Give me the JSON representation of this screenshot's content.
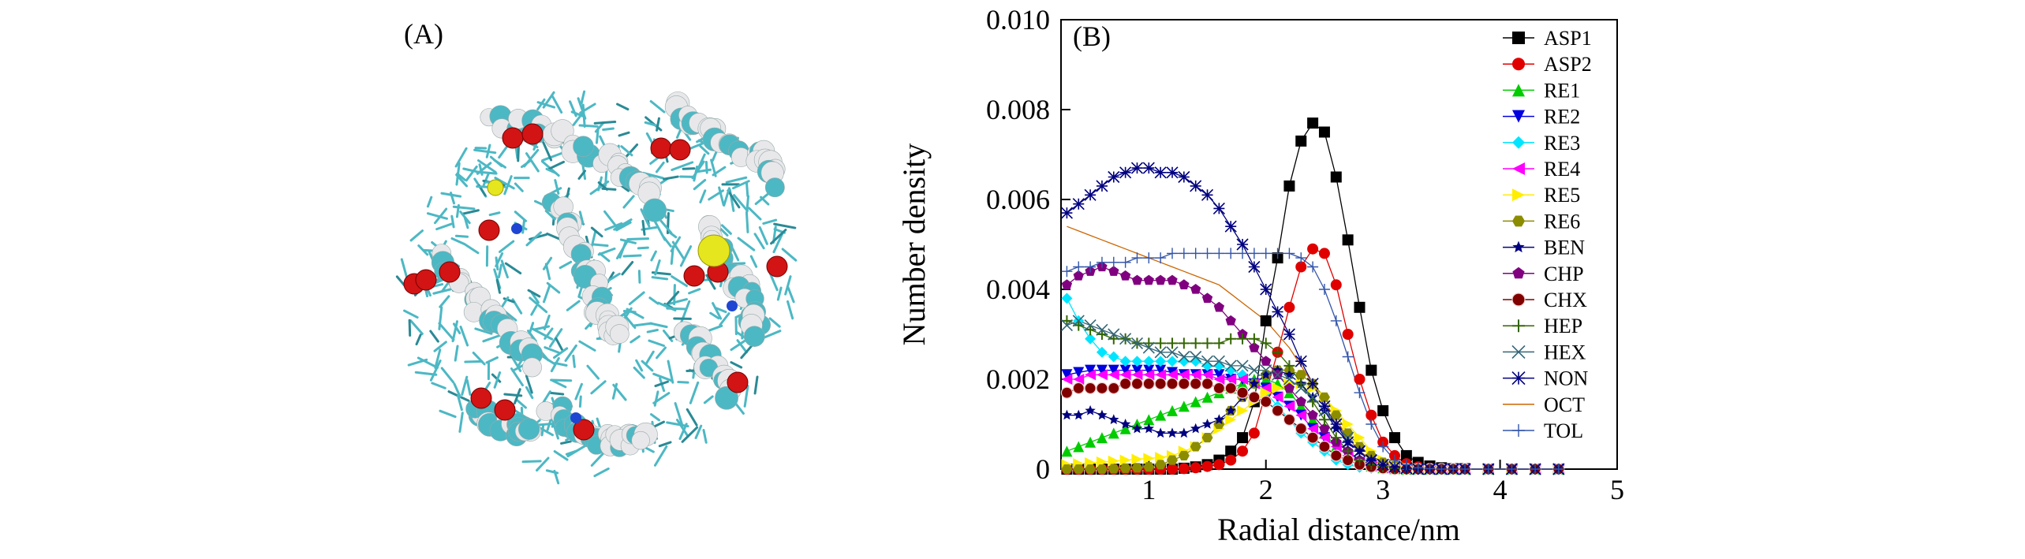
{
  "figure": {
    "panel_a_label": "(A)",
    "panel_b_label": "(B)"
  },
  "molecule_image": {
    "colors": {
      "carbon": "#4cb8c4",
      "hydrogen": "#e8e8ea",
      "oxygen": "#d21414",
      "sulfur": "#e6e61e",
      "nitrogen": "#1e46d2"
    }
  },
  "chart_data": {
    "type": "line",
    "xlabel": "Radial distance/nm",
    "ylabel": "Number density",
    "xlim": [
      0.25,
      5
    ],
    "ylim": [
      0,
      0.01
    ],
    "xticks": [
      "1",
      "2",
      "3",
      "4",
      "5"
    ],
    "yticks": [
      "0",
      "0.002",
      "0.004",
      "0.006",
      "0.008",
      "0.010"
    ],
    "grid": false,
    "legend_position": "top-right",
    "x": [
      0.3,
      0.4,
      0.5,
      0.6,
      0.7,
      0.8,
      0.9,
      1.0,
      1.1,
      1.2,
      1.3,
      1.4,
      1.5,
      1.6,
      1.7,
      1.8,
      1.9,
      2.0,
      2.1,
      2.2,
      2.3,
      2.4,
      2.5,
      2.6,
      2.7,
      2.8,
      2.9,
      3.0,
      3.1,
      3.2,
      3.3,
      3.4,
      3.5,
      3.6,
      3.7,
      3.8,
      3.9,
      4.0,
      4.1,
      4.2,
      4.3,
      4.4,
      4.5
    ],
    "series": [
      {
        "name": "ASP1",
        "marker": "square",
        "color": "#000000",
        "values": [
          0,
          0,
          0,
          0,
          0,
          0,
          0,
          0,
          0,
          0,
          2e-05,
          5e-05,
          0.0001,
          0.0002,
          0.0004,
          0.0007,
          0.0015,
          0.0033,
          0.0047,
          0.0063,
          0.0073,
          0.0077,
          0.0075,
          0.0065,
          0.0051,
          0.0036,
          0.0022,
          0.0013,
          0.0007,
          0.0003,
          0.00015,
          7e-05,
          3e-05,
          1e-05,
          1e-05,
          0,
          0,
          0,
          0,
          0,
          0,
          0,
          0
        ]
      },
      {
        "name": "ASP2",
        "marker": "circle",
        "color": "#e00000",
        "values": [
          0,
          0,
          0,
          0,
          0,
          0,
          0,
          0,
          0,
          0,
          1e-05,
          3e-05,
          6e-05,
          0.0001,
          0.0002,
          0.0004,
          0.0008,
          0.0017,
          0.0026,
          0.0036,
          0.0045,
          0.0049,
          0.0048,
          0.0041,
          0.003,
          0.002,
          0.0012,
          0.0006,
          0.0003,
          0.00012,
          5e-05,
          2e-05,
          1e-05,
          0,
          0,
          0,
          0,
          0,
          0,
          0,
          0,
          0,
          0
        ]
      },
      {
        "name": "RE1",
        "marker": "triangle-up",
        "color": "#00cc00",
        "values": [
          0.0004,
          0.0005,
          0.0006,
          0.0007,
          0.0008,
          0.0009,
          0.001,
          0.0011,
          0.0012,
          0.0013,
          0.0014,
          0.0015,
          0.0016,
          0.0017,
          0.0018,
          0.0019,
          0.002,
          0.002,
          0.0019,
          0.0017,
          0.0014,
          0.0011,
          0.0008,
          0.0005,
          0.0003,
          0.00015,
          7e-05,
          3e-05,
          1e-05,
          0,
          0,
          0,
          0,
          0,
          0,
          0,
          0,
          0,
          0,
          0,
          0,
          0,
          0
        ]
      },
      {
        "name": "RE2",
        "marker": "triangle-down",
        "color": "#0000e0",
        "values": [
          0.0021,
          0.00215,
          0.0022,
          0.0022,
          0.0022,
          0.0022,
          0.0022,
          0.0022,
          0.0022,
          0.00215,
          0.0021,
          0.0021,
          0.0021,
          0.0021,
          0.002,
          0.002,
          0.0019,
          0.0018,
          0.0016,
          0.0014,
          0.0012,
          0.0009,
          0.0007,
          0.0005,
          0.0003,
          0.00015,
          7e-05,
          3e-05,
          1e-05,
          0,
          0,
          0,
          0,
          0,
          0,
          0,
          0,
          0,
          0,
          0,
          0,
          0,
          0
        ]
      },
      {
        "name": "RE3",
        "marker": "diamond",
        "color": "#00e5ff",
        "values": [
          0.0038,
          0.0033,
          0.0029,
          0.0026,
          0.0025,
          0.0024,
          0.0024,
          0.0024,
          0.0024,
          0.0024,
          0.0024,
          0.0024,
          0.0023,
          0.0023,
          0.0022,
          0.0021,
          0.0019,
          0.0017,
          0.0014,
          0.0011,
          0.0008,
          0.0006,
          0.0004,
          0.0002,
          0.0001,
          4e-05,
          2e-05,
          0,
          0,
          0,
          0,
          0,
          0,
          0,
          0,
          0,
          0,
          0,
          0,
          0,
          0,
          0,
          0
        ]
      },
      {
        "name": "RE4",
        "marker": "triangle-left",
        "color": "#ff00ff",
        "values": [
          0.002,
          0.002,
          0.0021,
          0.0021,
          0.0021,
          0.0021,
          0.0021,
          0.0021,
          0.0021,
          0.0021,
          0.0021,
          0.0021,
          0.0021,
          0.002,
          0.002,
          0.002,
          0.0019,
          0.0018,
          0.0016,
          0.0014,
          0.0012,
          0.0009,
          0.0007,
          0.0005,
          0.0003,
          0.00015,
          7e-05,
          3e-05,
          1e-05,
          0,
          0,
          0,
          0,
          0,
          0,
          0,
          0,
          0,
          0,
          0,
          0,
          0,
          0
        ]
      },
      {
        "name": "RE5",
        "marker": "triangle-right",
        "color": "#ffee00",
        "values": [
          0.0001,
          0.00012,
          0.00014,
          0.00016,
          0.00018,
          0.0002,
          0.00022,
          0.00024,
          0.00026,
          0.0003,
          0.0004,
          0.0005,
          0.0007,
          0.0009,
          0.0011,
          0.0013,
          0.0015,
          0.0017,
          0.0018,
          0.0019,
          0.0019,
          0.0018,
          0.0016,
          0.0013,
          0.001,
          0.0007,
          0.0004,
          0.0002,
          0.0001,
          4e-05,
          2e-05,
          0,
          0,
          0,
          0,
          0,
          0,
          0,
          0,
          0,
          0,
          0,
          0
        ]
      },
      {
        "name": "RE6",
        "marker": "hexagon",
        "color": "#8c8c00",
        "values": [
          0,
          0,
          0,
          0,
          1e-05,
          2e-05,
          3e-05,
          5e-05,
          0.0001,
          0.0002,
          0.0003,
          0.0005,
          0.0007,
          0.001,
          0.0013,
          0.0016,
          0.0019,
          0.0021,
          0.0022,
          0.0022,
          0.0021,
          0.0019,
          0.0016,
          0.0012,
          0.0008,
          0.0005,
          0.0003,
          0.00015,
          7e-05,
          3e-05,
          1e-05,
          0,
          0,
          0,
          0,
          0,
          0,
          0,
          0,
          0,
          0,
          0,
          0
        ]
      },
      {
        "name": "BEN",
        "marker": "star",
        "color": "#000080",
        "values": [
          0.0012,
          0.0012,
          0.0013,
          0.0012,
          0.0011,
          0.001,
          0.0009,
          0.0009,
          0.0008,
          0.0008,
          0.0008,
          0.0009,
          0.001,
          0.0011,
          0.0013,
          0.0016,
          0.0019,
          0.0021,
          0.0022,
          0.0021,
          0.0019,
          0.0016,
          0.0013,
          0.0009,
          0.0006,
          0.0004,
          0.0002,
          0.0001,
          4e-05,
          2e-05,
          0,
          0,
          0,
          0,
          0,
          0,
          0,
          0,
          0,
          0,
          0,
          0,
          0
        ]
      },
      {
        "name": "CHP",
        "marker": "pentagon",
        "color": "#800080",
        "values": [
          0.0041,
          0.0043,
          0.0044,
          0.0045,
          0.0044,
          0.0043,
          0.0042,
          0.0042,
          0.0042,
          0.0042,
          0.0041,
          0.004,
          0.0038,
          0.0036,
          0.0033,
          0.003,
          0.0027,
          0.0024,
          0.0021,
          0.0018,
          0.0015,
          0.0012,
          0.0009,
          0.0006,
          0.0004,
          0.0002,
          0.0001,
          5e-05,
          2e-05,
          0,
          0,
          0,
          0,
          0,
          0,
          0,
          0,
          0,
          0,
          0,
          0,
          0,
          0
        ]
      },
      {
        "name": "CHX",
        "marker": "circle-open",
        "color": "#800000",
        "values": [
          0.0017,
          0.0018,
          0.0018,
          0.0018,
          0.0018,
          0.0019,
          0.0019,
          0.0019,
          0.0019,
          0.0019,
          0.0019,
          0.0019,
          0.0019,
          0.0018,
          0.0018,
          0.0017,
          0.0016,
          0.0015,
          0.0013,
          0.0011,
          0.0009,
          0.0007,
          0.0005,
          0.0003,
          0.0002,
          0.0001,
          5e-05,
          2e-05,
          0,
          0,
          0,
          0,
          0,
          0,
          0,
          0,
          0,
          0,
          0,
          0,
          0,
          0,
          0
        ]
      },
      {
        "name": "HEP",
        "marker": "plus",
        "color": "#336600",
        "values": [
          0.0033,
          0.0032,
          0.0031,
          0.003,
          0.0029,
          0.0029,
          0.0028,
          0.0028,
          0.0028,
          0.0028,
          0.0028,
          0.0028,
          0.0028,
          0.0028,
          0.0029,
          0.0029,
          0.0029,
          0.0028,
          0.0026,
          0.0023,
          0.0019,
          0.0015,
          0.0011,
          0.0007,
          0.0004,
          0.0002,
          0.0001,
          5e-05,
          2e-05,
          0,
          0,
          0,
          0,
          0,
          0,
          0,
          0,
          0,
          0,
          0,
          0,
          0,
          0
        ]
      },
      {
        "name": "HEX",
        "marker": "x",
        "color": "#336677",
        "values": [
          0.0032,
          0.0033,
          0.0032,
          0.0031,
          0.003,
          0.0029,
          0.0028,
          0.0027,
          0.0026,
          0.0026,
          0.0025,
          0.0025,
          0.0024,
          0.0024,
          0.0023,
          0.0023,
          0.0022,
          0.0022,
          0.0021,
          0.002,
          0.0018,
          0.0016,
          0.0013,
          0.001,
          0.0007,
          0.0004,
          0.0002,
          0.0001,
          5e-05,
          2e-05,
          0,
          0,
          0,
          0,
          0,
          0,
          0,
          0,
          0,
          0,
          0,
          0,
          0
        ]
      },
      {
        "name": "NON",
        "marker": "asterisk",
        "color": "#000080",
        "values": [
          0.0057,
          0.0059,
          0.0061,
          0.0063,
          0.0065,
          0.0066,
          0.0067,
          0.0067,
          0.0066,
          0.0066,
          0.0065,
          0.0063,
          0.0061,
          0.0058,
          0.0054,
          0.005,
          0.0045,
          0.004,
          0.0035,
          0.003,
          0.0024,
          0.0019,
          0.0014,
          0.001,
          0.0006,
          0.0004,
          0.0002,
          0.0001,
          5e-05,
          2e-05,
          0,
          0,
          0,
          0,
          0,
          0,
          0,
          0,
          0,
          0,
          0,
          0,
          0
        ]
      },
      {
        "name": "OCT",
        "marker": "none",
        "color": "#cc6600",
        "values": [
          0.0054,
          0.0053,
          0.0052,
          0.0051,
          0.005,
          0.0049,
          0.0048,
          0.0047,
          0.0046,
          0.0045,
          0.0044,
          0.0043,
          0.0042,
          0.0041,
          0.0039,
          0.0037,
          0.0035,
          0.0033,
          0.003,
          0.0027,
          0.0023,
          0.0019,
          0.0015,
          0.0011,
          0.0007,
          0.0004,
          0.0002,
          0.0001,
          5e-05,
          2e-05,
          0,
          0,
          0,
          0,
          0,
          0,
          0,
          0,
          0,
          0,
          0,
          0,
          0
        ]
      },
      {
        "name": "TOL",
        "marker": "plus-thin",
        "color": "#3355aa",
        "values": [
          0.0044,
          0.0045,
          0.0045,
          0.0046,
          0.0046,
          0.0046,
          0.0047,
          0.0047,
          0.0047,
          0.0048,
          0.0048,
          0.0048,
          0.0048,
          0.0048,
          0.0048,
          0.0048,
          0.0048,
          0.0048,
          0.0048,
          0.0048,
          0.0047,
          0.0045,
          0.004,
          0.0033,
          0.0025,
          0.0017,
          0.001,
          0.0005,
          0.0002,
          0.0001,
          3e-05,
          1e-05,
          0,
          0,
          0,
          0,
          0,
          0,
          0,
          0,
          0,
          0,
          0
        ]
      }
    ]
  }
}
